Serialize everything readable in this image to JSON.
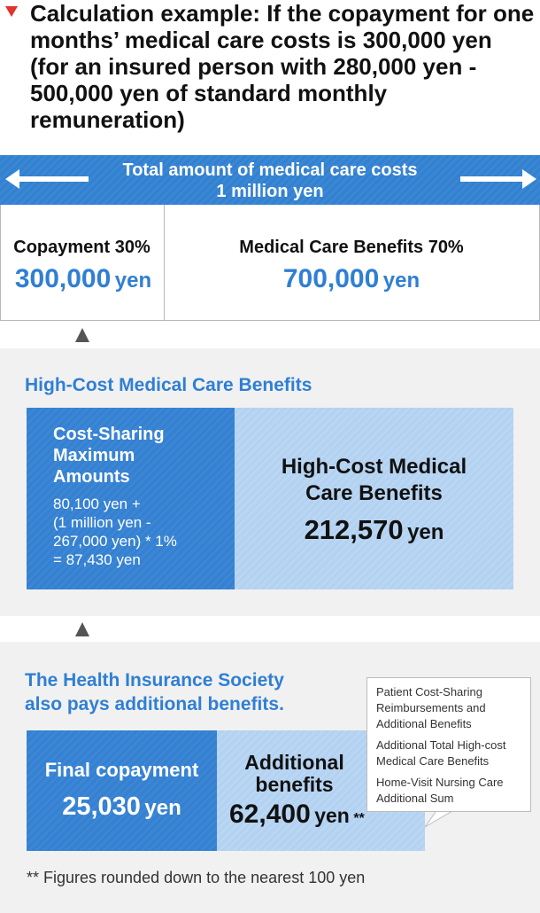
{
  "title": "Calculation example: If the copayment for one months’ medical care costs is 300,000 yen (for an insured person with 280,000 yen - 500,000 yen of standard monthly remuneration)",
  "total": {
    "line1": "Total amount of medical care costs",
    "line2": "1 million yen"
  },
  "split": {
    "left_label": "Copayment 30%",
    "left_value": "300,000",
    "left_unit": "yen",
    "right_label": "Medical Care Benefits 70%",
    "right_value": "700,000",
    "right_unit": "yen"
  },
  "high_cost": {
    "heading": "High-Cost Medical Care Benefits",
    "left_title_1": "Cost-Sharing",
    "left_title_2": "Maximum",
    "left_title_3": "Amounts",
    "formula_1": "80,100 yen +",
    "formula_2": "(1 million yen -",
    "formula_3": "267,000 yen) * 1%",
    "formula_4": "= 87,430 yen",
    "right_title_1": "High-Cost Medical",
    "right_title_2": "Care Benefits",
    "right_value": "212,570",
    "right_unit": "yen"
  },
  "society": {
    "heading_1": "The Health Insurance Society",
    "heading_2": "also pays additional benefits.",
    "final_label": "Final copayment",
    "final_value": "25,030",
    "final_unit": "yen",
    "additional_1": "Additional",
    "additional_2": "benefits",
    "additional_value": "62,400",
    "additional_unit": "yen",
    "additional_mark": "**",
    "callout": [
      "Patient Cost-Sharing Reimbursements and Additional Benefits",
      "Additional Total High-cost Medical Care Benefits",
      "Home-Visit Nursing Care Additional Sum"
    ],
    "footnote": "** Figures rounded down to the nearest 100 yen"
  },
  "colors": {
    "accent_blue": "#2f7fd4",
    "dark_box": "#3b86d6",
    "light_box": "#b9d6f3",
    "title_arrow": "#e0342c",
    "panel_bg": "#f1f1f1"
  }
}
